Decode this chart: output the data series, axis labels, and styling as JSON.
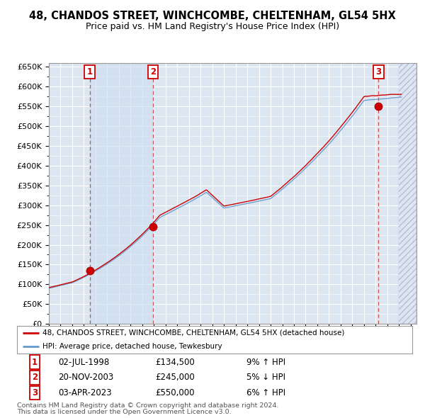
{
  "title": "48, CHANDOS STREET, WINCHCOMBE, CHELTENHAM, GL54 5HX",
  "subtitle": "Price paid vs. HM Land Registry's House Price Index (HPI)",
  "bg_color": "#ffffff",
  "plot_bg_color": "#dce6f1",
  "grid_color": "#ffffff",
  "line1_color": "#cc0000",
  "line2_color": "#6699cc",
  "sale_marker_color": "#cc0000",
  "shade_color": "#ccddf0",
  "ylim": [
    0,
    660000
  ],
  "yticks": [
    0,
    50000,
    100000,
    150000,
    200000,
    250000,
    300000,
    350000,
    400000,
    450000,
    500000,
    550000,
    600000,
    650000
  ],
  "ytick_labels": [
    "£0",
    "£50K",
    "£100K",
    "£150K",
    "£200K",
    "£250K",
    "£300K",
    "£350K",
    "£400K",
    "£450K",
    "£500K",
    "£550K",
    "£600K",
    "£650K"
  ],
  "xlim_start": 1995.0,
  "xlim_end": 2026.5,
  "data_end_year": 2025.0,
  "sales": [
    {
      "label": "1",
      "year": 1998.5,
      "price": 134500,
      "hpi_rel": "9% ↑ HPI",
      "date": "02-JUL-1998"
    },
    {
      "label": "2",
      "year": 2003.92,
      "price": 245000,
      "hpi_rel": "5% ↓ HPI",
      "date": "20-NOV-2003"
    },
    {
      "label": "3",
      "year": 2023.25,
      "price": 550000,
      "hpi_rel": "6% ↑ HPI",
      "date": "03-APR-2023"
    }
  ],
  "legend_line1": "48, CHANDOS STREET, WINCHCOMBE, CHELTENHAM, GL54 5HX (detached house)",
  "legend_line2": "HPI: Average price, detached house, Tewkesbury",
  "footer1": "Contains HM Land Registry data © Crown copyright and database right 2024.",
  "footer2": "This data is licensed under the Open Government Licence v3.0.",
  "table_data": [
    [
      "1",
      "02-JUL-1998",
      "£134,500",
      "9% ↑ HPI"
    ],
    [
      "2",
      "20-NOV-2003",
      "£245,000",
      "5% ↓ HPI"
    ],
    [
      "3",
      "03-APR-2023",
      "£550,000",
      "6% ↑ HPI"
    ]
  ]
}
